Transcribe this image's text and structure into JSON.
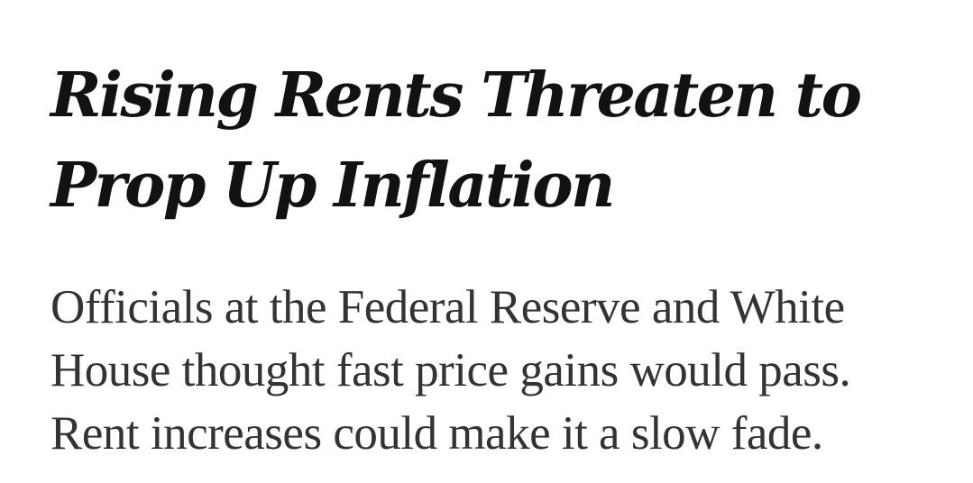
{
  "article": {
    "headline_lines": [
      "Rising Rents Threaten to",
      "Prop Up Inflation"
    ],
    "summary_lines": [
      "Officials at the Federal Reserve and White",
      "House thought fast price gains would pass.",
      "Rent increases could make it a slow fade."
    ]
  },
  "colors": {
    "headline": "#121212",
    "summary": "#333333",
    "background": "#ffffff"
  }
}
